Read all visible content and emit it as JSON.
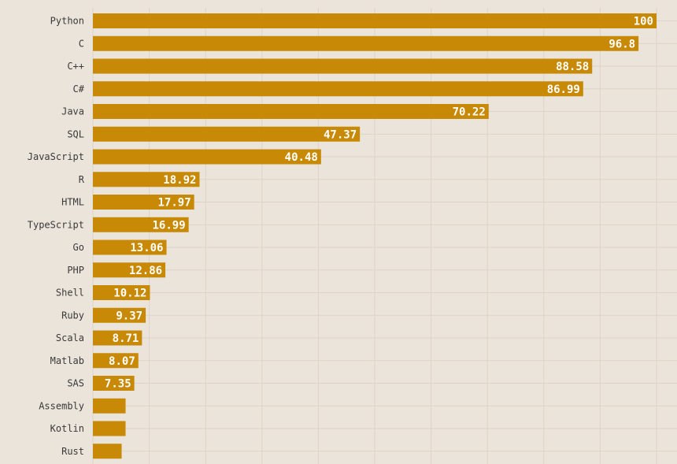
{
  "chart_data": {
    "type": "bar",
    "orientation": "horizontal",
    "categories": [
      "Python",
      "C",
      "C++",
      "C#",
      "Java",
      "SQL",
      "JavaScript",
      "R",
      "HTML",
      "TypeScript",
      "Go",
      "PHP",
      "Shell",
      "Ruby",
      "Scala",
      "Matlab",
      "SAS",
      "Assembly",
      "Kotlin",
      "Rust"
    ],
    "values": [
      100,
      96.8,
      88.58,
      86.99,
      70.22,
      47.37,
      40.48,
      18.92,
      17.97,
      16.99,
      13.06,
      12.86,
      10.12,
      9.37,
      8.71,
      8.07,
      7.35,
      5.8,
      5.8,
      5.1
    ],
    "data_labels": [
      "100",
      "96.8",
      "88.58",
      "86.99",
      "70.22",
      "47.37",
      "40.48",
      "18.92",
      "17.97",
      "16.99",
      "13.06",
      "12.86",
      "10.12",
      "9.37",
      "8.71",
      "8.07",
      "7.35",
      "",
      "",
      ""
    ],
    "xlim": [
      0,
      100
    ],
    "grid": true,
    "colors": {
      "bar": "#c88a06",
      "background": "#ebe4da",
      "grid": "#dcd4c6",
      "label": "#3a3a3a",
      "value_text": "#ffffff"
    }
  }
}
